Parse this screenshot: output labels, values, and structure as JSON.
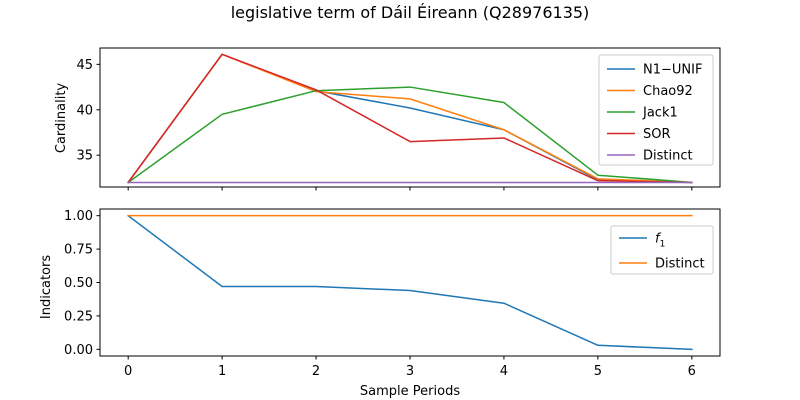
{
  "title": "legislative term of Dáil Éireann (Q28976135)",
  "colors": {
    "blue": "#1f77b4",
    "orange": "#ff7f0e",
    "green": "#2ca02c",
    "red": "#d62728",
    "purple": "#9467bd"
  },
  "chart_data": [
    {
      "type": "line",
      "x": [
        0,
        1,
        2,
        3,
        4,
        5,
        6
      ],
      "xlim": [
        -0.3,
        6.3
      ],
      "ylim": [
        31.5,
        46.8
      ],
      "yticks": [
        35,
        40,
        45
      ],
      "show_xtick_labels": false,
      "xlabel": "",
      "ylabel": "Cardinality",
      "legend_position": "upper right",
      "series": [
        {
          "name": "N1−UNIF",
          "color": "#1f77b4",
          "values": [
            32,
            46.1,
            42.1,
            40.2,
            37.8,
            32.3,
            32
          ]
        },
        {
          "name": "Chao92",
          "color": "#ff7f0e",
          "values": [
            32,
            46.1,
            42.0,
            41.2,
            37.8,
            32.4,
            32
          ]
        },
        {
          "name": "Jack1",
          "color": "#2ca02c",
          "values": [
            32,
            39.5,
            42.1,
            42.5,
            40.8,
            32.8,
            32
          ]
        },
        {
          "name": "SOR",
          "color": "#d62728",
          "values": [
            32,
            46.1,
            42.2,
            36.5,
            36.9,
            32.2,
            32
          ]
        },
        {
          "name": "Distinct",
          "color": "#9467bd",
          "values": [
            32,
            32,
            32,
            32,
            32,
            32,
            32
          ]
        }
      ]
    },
    {
      "type": "line",
      "x": [
        0,
        1,
        2,
        3,
        4,
        5,
        6
      ],
      "xlim": [
        -0.3,
        6.3
      ],
      "ylim": [
        -0.05,
        1.05
      ],
      "yticks": [
        0.0,
        0.25,
        0.5,
        0.75,
        1.0
      ],
      "ytick_labels": [
        "0.00",
        "0.25",
        "0.50",
        "0.75",
        "1.00"
      ],
      "xticks": [
        0,
        1,
        2,
        3,
        4,
        5,
        6
      ],
      "xtick_labels": [
        "0",
        "1",
        "2",
        "3",
        "4",
        "5",
        "6"
      ],
      "xlabel": "Sample Periods",
      "ylabel": "Indicators",
      "legend_position": "upper right",
      "series": [
        {
          "name": "f",
          "name_sub": "1",
          "color": "#1f77b4",
          "values": [
            1.0,
            0.47,
            0.47,
            0.44,
            0.345,
            0.03,
            0.0
          ]
        },
        {
          "name": "Distinct",
          "color": "#ff7f0e",
          "values": [
            1.0,
            1.0,
            1.0,
            1.0,
            1.0,
            1.0,
            1.0
          ]
        }
      ]
    }
  ]
}
